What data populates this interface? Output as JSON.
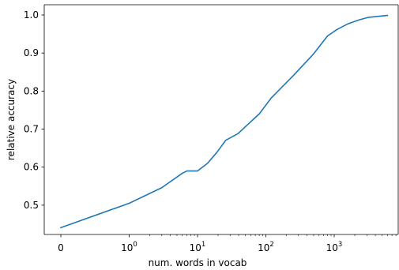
{
  "chart_data": {
    "type": "line",
    "title": "",
    "xlabel": "num. words in vocab",
    "ylabel": "relative accuracy",
    "x_scale": "symlog",
    "x_ticks": [
      {
        "value": 0,
        "label": "0"
      },
      {
        "value": 1,
        "label": "10",
        "exp": "0"
      },
      {
        "value": 10,
        "label": "10",
        "exp": "1"
      },
      {
        "value": 100,
        "label": "10",
        "exp": "2"
      },
      {
        "value": 1000,
        "label": "10",
        "exp": "3"
      }
    ],
    "y_ticks": [
      0.5,
      0.6,
      0.7,
      0.8,
      0.9,
      1.0
    ],
    "y_tick_labels": [
      "0.5",
      "0.6",
      "0.7",
      "0.8",
      "0.9",
      "1.0"
    ],
    "ylim": [
      0.423,
      1.027
    ],
    "grid": false,
    "series": [
      {
        "color": "#1f77b4",
        "points": [
          [
            0,
            0.441
          ],
          [
            1,
            0.505
          ],
          [
            3,
            0.546
          ],
          [
            6,
            0.584
          ],
          [
            7,
            0.59
          ],
          [
            10,
            0.59
          ],
          [
            14,
            0.61
          ],
          [
            19,
            0.638
          ],
          [
            26,
            0.671
          ],
          [
            39,
            0.688
          ],
          [
            80,
            0.74
          ],
          [
            120,
            0.782
          ],
          [
            250,
            0.84
          ],
          [
            500,
            0.898
          ],
          [
            800,
            0.945
          ],
          [
            1100,
            0.962
          ],
          [
            1600,
            0.977
          ],
          [
            2300,
            0.987
          ],
          [
            3200,
            0.994
          ],
          [
            6000,
            0.999
          ]
        ]
      }
    ]
  }
}
